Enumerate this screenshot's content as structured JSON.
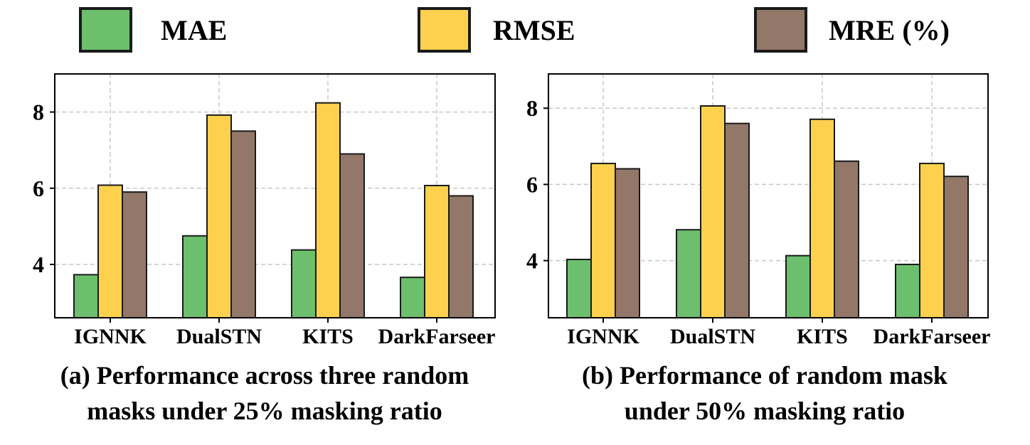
{
  "legend": [
    {
      "label": "MAE",
      "color": "#6cbf6c"
    },
    {
      "label": "RMSE",
      "color": "#fdd14e"
    },
    {
      "label": "MRE (%)",
      "color": "#937769"
    }
  ],
  "chart_data": [
    {
      "type": "bar",
      "categories": [
        "IGNNK",
        "DualSTN",
        "KITS",
        "DarkFarseer"
      ],
      "series": [
        {
          "name": "MAE",
          "values": [
            3.73,
            4.75,
            4.38,
            3.66
          ]
        },
        {
          "name": "RMSE",
          "values": [
            6.08,
            7.92,
            8.24,
            6.07
          ]
        },
        {
          "name": "MRE (%)",
          "values": [
            5.9,
            7.5,
            6.9,
            5.8
          ]
        }
      ],
      "yticks": [
        "4",
        "6",
        "8"
      ],
      "ylim": [
        2.6,
        9.0
      ],
      "grid": true,
      "caption_lines": [
        "(a) Performance across three random",
        "masks under 25% masking ratio"
      ]
    },
    {
      "type": "bar",
      "categories": [
        "IGNNK",
        "DualSTN",
        "KITS",
        "DarkFarseer"
      ],
      "series": [
        {
          "name": "MAE",
          "values": [
            4.03,
            4.81,
            4.13,
            3.9
          ]
        },
        {
          "name": "RMSE",
          "values": [
            6.55,
            8.06,
            7.71,
            6.55
          ]
        },
        {
          "name": "MRE (%)",
          "values": [
            6.41,
            7.6,
            6.61,
            6.21
          ]
        }
      ],
      "yticks": [
        "4",
        "6",
        "8"
      ],
      "ylim": [
        2.5,
        8.9
      ],
      "grid": true,
      "caption_lines": [
        "(b) Performance of random mask",
        "under 50% masking ratio"
      ]
    }
  ]
}
